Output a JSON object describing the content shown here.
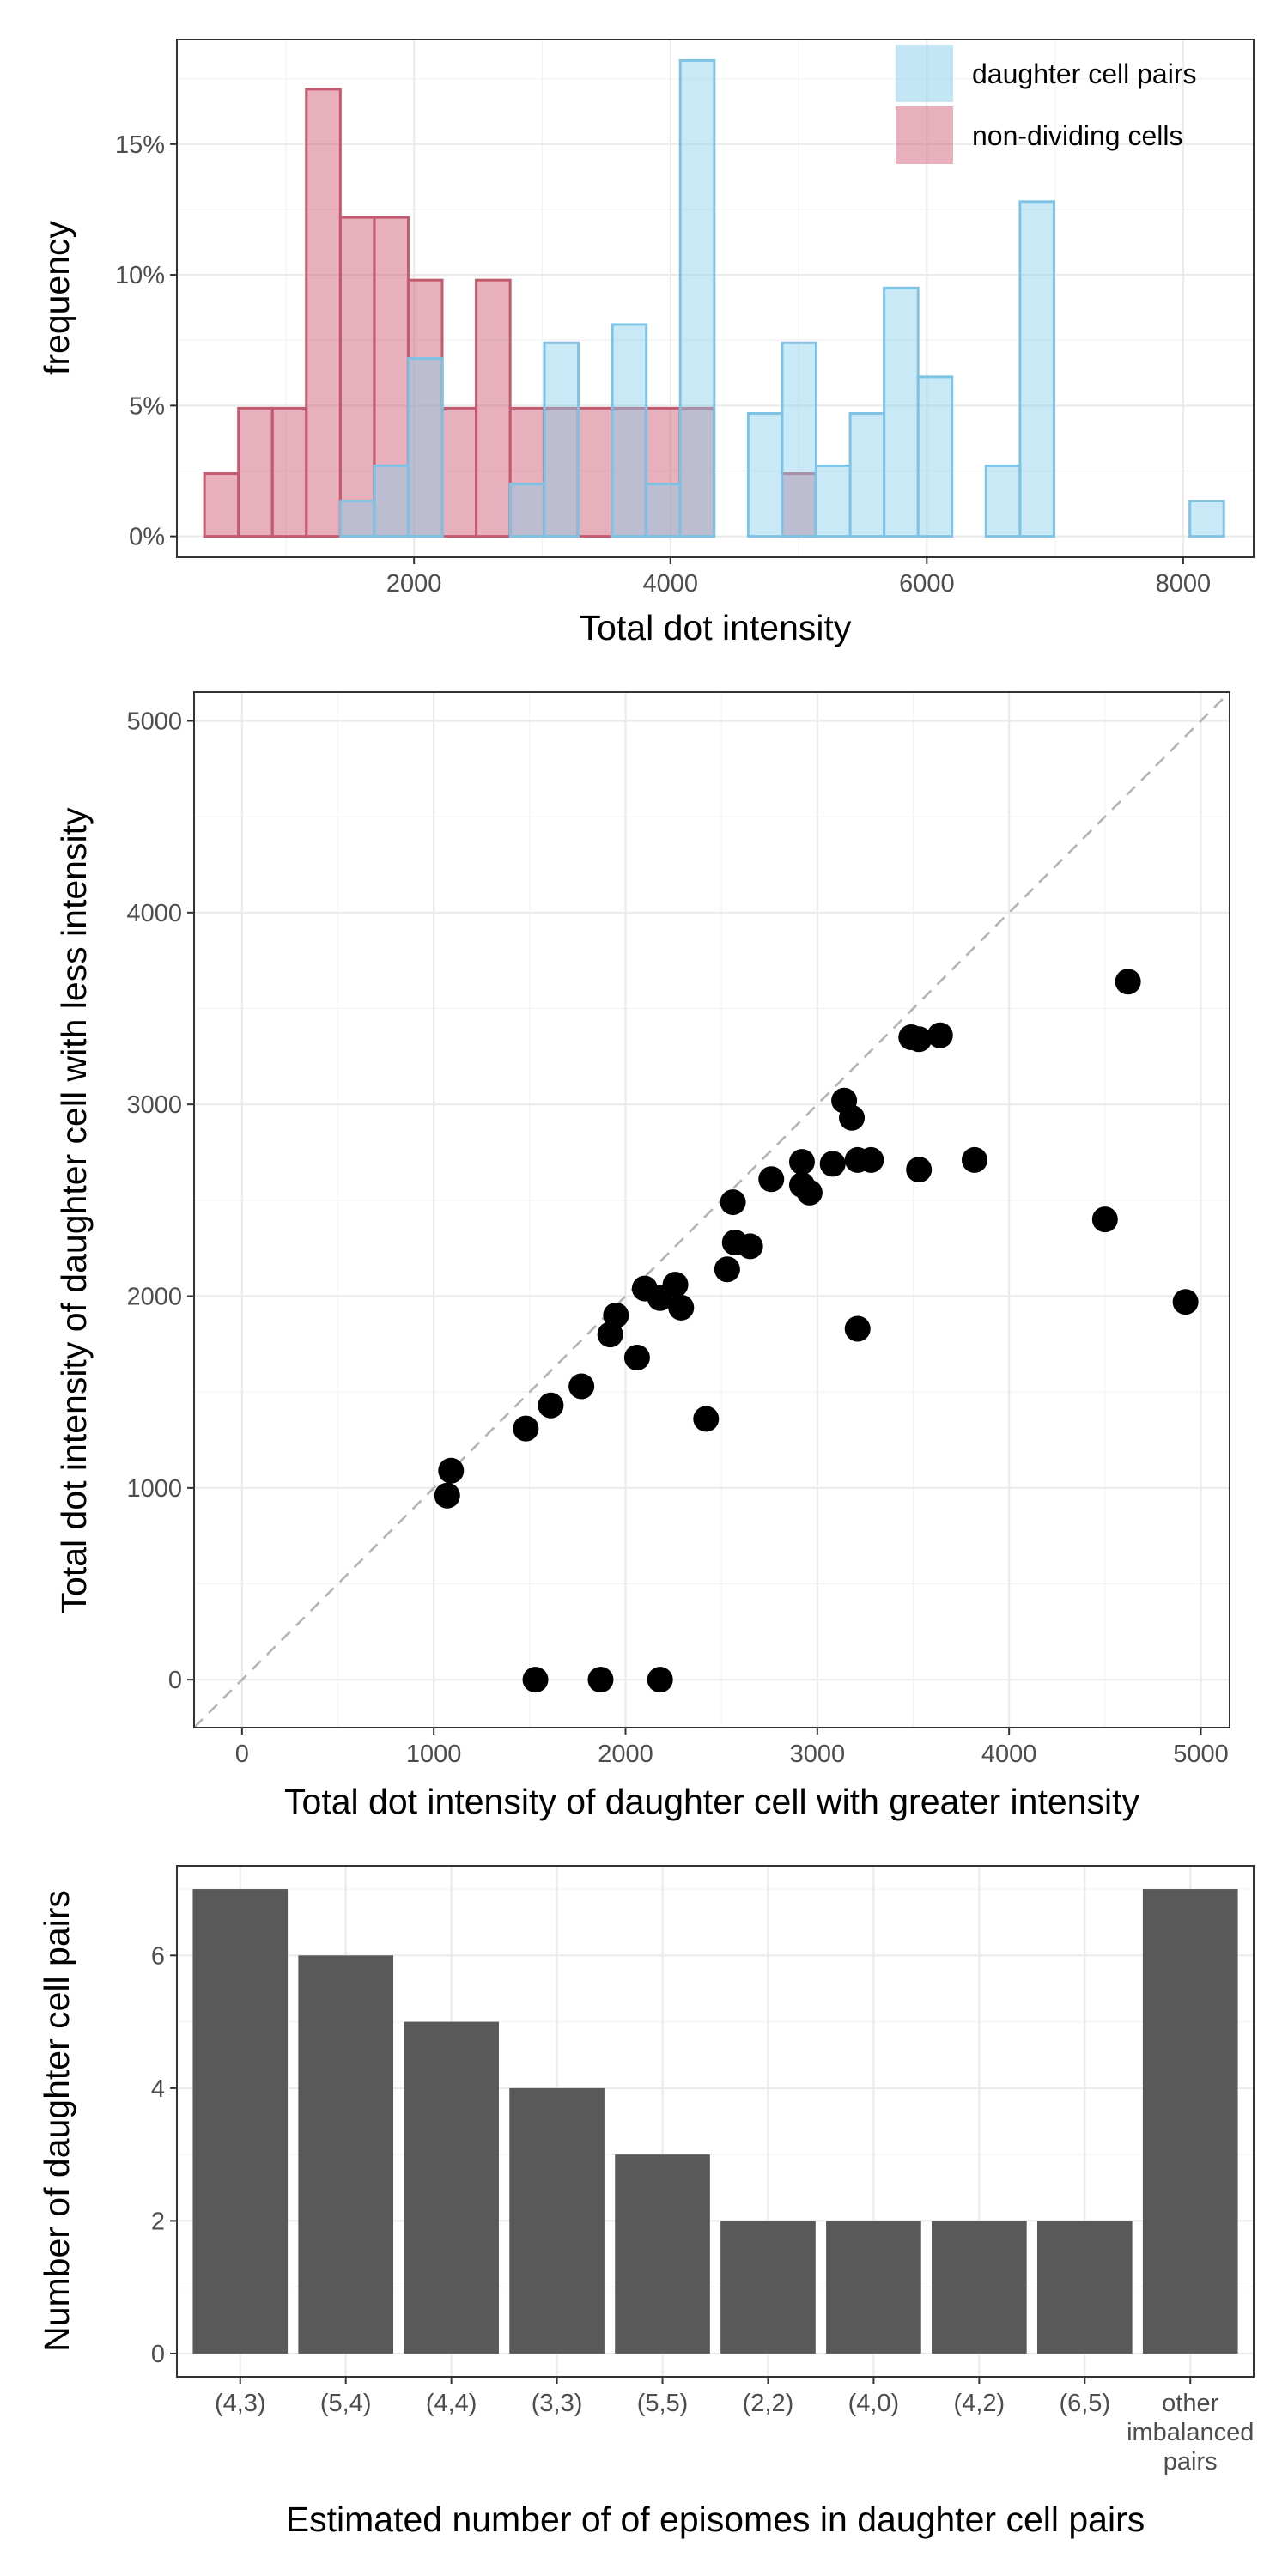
{
  "colors": {
    "daughter_fill": "#87CEEB",
    "daughter_stroke": "#7ec3e3",
    "nondividing_fill": "#C9506A",
    "nondividing_stroke": "#c45a6f",
    "point": "#000000",
    "bar": "#595959",
    "diagonal": "#b3b3b3"
  },
  "chart_data": [
    {
      "type": "bar",
      "subtype": "overlaid-histogram",
      "xlabel": "Total dot intensity",
      "ylabel": "frequency",
      "xlim": [
        150,
        8550
      ],
      "ylim": [
        -0.008,
        0.19
      ],
      "xticks": [
        2000,
        4000,
        6000,
        8000
      ],
      "xtick_labels": [
        "2000",
        "4000",
        "6000",
        "8000"
      ],
      "yticks": [
        0,
        0.05,
        0.1,
        0.15
      ],
      "ytick_labels": [
        "0%",
        "5%",
        "10%",
        "15%"
      ],
      "bin_width": 265,
      "legend_position": "top-right",
      "grid": true,
      "series": [
        {
          "name": "daughter cell pairs",
          "color_key": "daughter",
          "bin_starts": [
            1427,
            1692,
            1957,
            2222,
            2487,
            2752,
            3017,
            3282,
            3547,
            3812,
            4077,
            4342,
            4607,
            4872,
            5137,
            5402,
            5667,
            5932,
            6197,
            6462,
            6727,
            6992,
            7257,
            7522,
            7787,
            8052
          ],
          "values": [
            0.0135,
            0.027,
            0.068,
            0,
            0,
            0.02,
            0.074,
            0,
            0.081,
            0.02,
            0.182,
            0,
            0.047,
            0.074,
            0.027,
            0.047,
            0.095,
            0.061,
            0,
            0.027,
            0.128,
            0,
            0,
            0,
            0,
            0.0135
          ]
        },
        {
          "name": "non-dividing cells",
          "color_key": "nondividing",
          "bin_starts": [
            365,
            630,
            895,
            1160,
            1425,
            1690,
            1955,
            2220,
            2485,
            2750,
            3015,
            3280,
            3545,
            3810,
            4075,
            4340,
            4605,
            4870,
            5135
          ],
          "values": [
            0.024,
            0.049,
            0.049,
            0.171,
            0.122,
            0.122,
            0.098,
            0.049,
            0.098,
            0.049,
            0.049,
            0.049,
            0.049,
            0.049,
            0.049,
            0,
            0,
            0.024,
            0
          ]
        }
      ]
    },
    {
      "type": "scatter",
      "xlabel": "Total dot intensity of daughter cell with greater intensity",
      "ylabel": "Total dot intensity of daughter cell with less intensity",
      "xlim": [
        -250,
        5150
      ],
      "ylim": [
        -250,
        5150
      ],
      "xticks": [
        0,
        1000,
        2000,
        3000,
        4000,
        5000
      ],
      "xtick_labels": [
        "0",
        "1000",
        "2000",
        "3000",
        "4000",
        "5000"
      ],
      "yticks": [
        0,
        1000,
        2000,
        3000,
        4000,
        5000
      ],
      "ytick_labels": [
        "0",
        "1000",
        "2000",
        "3000",
        "4000",
        "5000"
      ],
      "reference_line": "y = x",
      "grid": true,
      "points": [
        [
          1070,
          960
        ],
        [
          1090,
          1090
        ],
        [
          1480,
          1310
        ],
        [
          1610,
          1430
        ],
        [
          1770,
          1530
        ],
        [
          1920,
          1800
        ],
        [
          1950,
          1900
        ],
        [
          2060,
          1680
        ],
        [
          2100,
          2040
        ],
        [
          2180,
          1990
        ],
        [
          2260,
          2060
        ],
        [
          2290,
          1940
        ],
        [
          2420,
          1360
        ],
        [
          2530,
          2140
        ],
        [
          2560,
          2490
        ],
        [
          2570,
          2280
        ],
        [
          2650,
          2260
        ],
        [
          2760,
          2610
        ],
        [
          2920,
          2700
        ],
        [
          2920,
          2580
        ],
        [
          2960,
          2540
        ],
        [
          3080,
          2690
        ],
        [
          3140,
          3020
        ],
        [
          3180,
          2930
        ],
        [
          3210,
          2710
        ],
        [
          3210,
          1830
        ],
        [
          3280,
          2710
        ],
        [
          3490,
          3350
        ],
        [
          3530,
          3340
        ],
        [
          3530,
          2660
        ],
        [
          3640,
          3360
        ],
        [
          3820,
          2710
        ],
        [
          4500,
          2400
        ],
        [
          4620,
          3640
        ],
        [
          4920,
          1970
        ],
        [
          1530,
          0
        ],
        [
          1870,
          0
        ],
        [
          2180,
          0
        ]
      ]
    },
    {
      "type": "bar",
      "xlabel": "Estimated number of of episomes in daughter cell pairs",
      "ylabel": "Number of daughter cell pairs",
      "categories": [
        "(4,3)",
        "(5,4)",
        "(4,4)",
        "(3,3)",
        "(5,5)",
        "(2,2)",
        "(4,0)",
        "(4,2)",
        "(6,5)",
        "other\nimbalanced\npairs"
      ],
      "values": [
        7,
        6,
        5,
        4,
        3,
        2,
        2,
        2,
        2,
        7
      ],
      "ylim": [
        -0.35,
        7.35
      ],
      "yticks": [
        0,
        2,
        4,
        6
      ],
      "ytick_labels": [
        "0",
        "2",
        "4",
        "6"
      ],
      "grid": true
    }
  ]
}
